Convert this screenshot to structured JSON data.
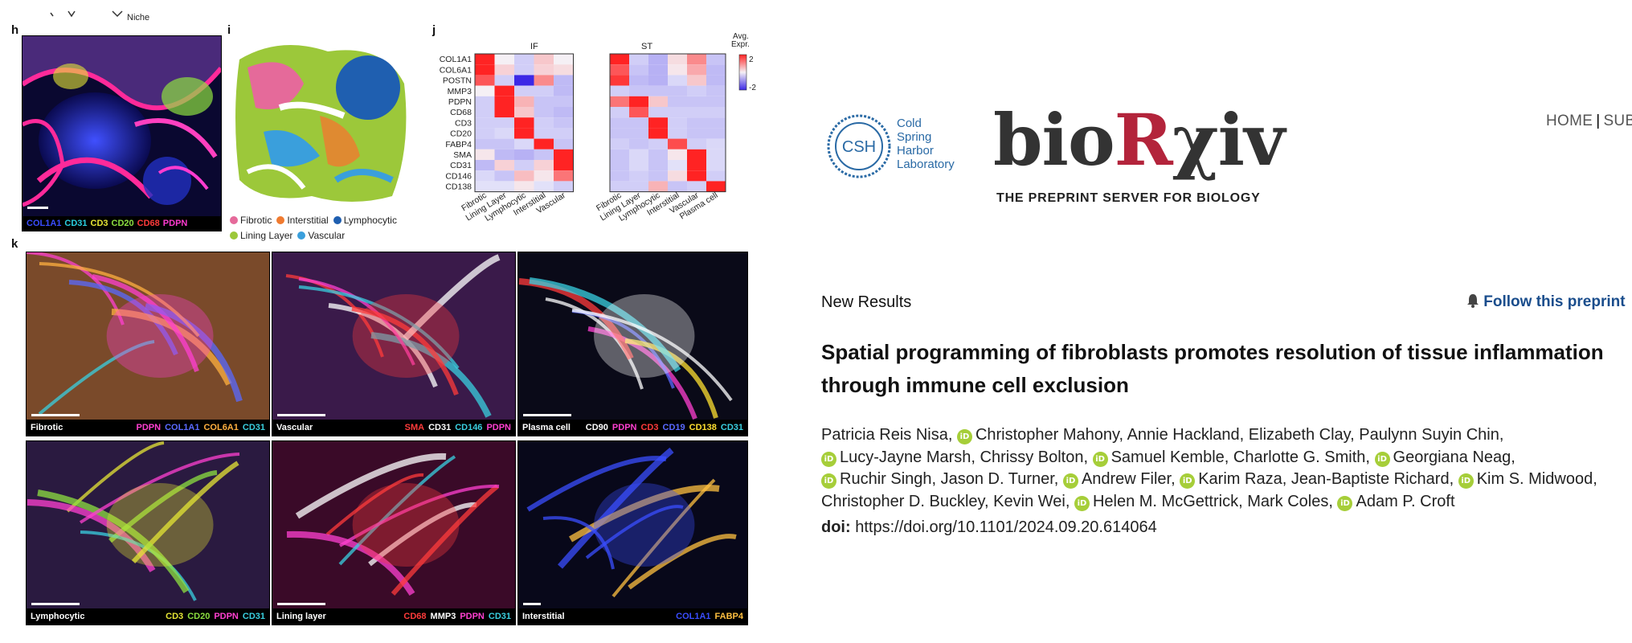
{
  "figure": {
    "panel_labels": {
      "h": "h",
      "i": "i",
      "j": "j",
      "k": "k"
    },
    "top_fragment": "Niche",
    "panel_h": {
      "markers": [
        {
          "text": "COL1A1",
          "color": "#3a4dff"
        },
        {
          "text": "CD31",
          "color": "#2ad0e0"
        },
        {
          "text": "CD3",
          "color": "#e6e635"
        },
        {
          "text": "CD20",
          "color": "#8de040"
        },
        {
          "text": "CD68",
          "color": "#ff3b3b"
        },
        {
          "text": "PDPN",
          "color": "#ff3bd0"
        }
      ]
    },
    "panel_i": {
      "legend": [
        {
          "label": "Fibrotic",
          "color": "#e56a9a"
        },
        {
          "label": "Interstitial",
          "color": "#f07b30"
        },
        {
          "label": "Lymphocytic",
          "color": "#1f5fb0"
        },
        {
          "label": "Lining Layer",
          "color": "#9cc83a"
        },
        {
          "label": "Vascular",
          "color": "#3a9fdc"
        }
      ]
    },
    "panel_j": {
      "left_title": "IF",
      "right_title": "ST",
      "colorbar_title_1": "Avg.",
      "colorbar_title_2": "Expr.",
      "colorbar_max": "2",
      "colorbar_min": "-2",
      "rows": [
        "COL1A1",
        "COL6A1",
        "POSTN",
        "MMP3",
        "PDPN",
        "CD68",
        "CD3",
        "CD20",
        "FABP4",
        "SMA",
        "CD31",
        "CD146",
        "CD138"
      ],
      "if_cols": [
        "Fibrotic",
        "Lining Layer",
        "Lymphocytic",
        "Interstitial",
        "Vascular"
      ],
      "st_cols": [
        "Fibrotic",
        "Lining Layer",
        "Lymphocytic",
        "Interstitial",
        "Vascular",
        "Plasma cell"
      ],
      "if_values": [
        [
          2,
          0,
          -0.3,
          0.4,
          0
        ],
        [
          2,
          0.3,
          -0.3,
          0.3,
          0.2
        ],
        [
          1.5,
          -0.3,
          -2,
          1,
          -0.5
        ],
        [
          0,
          2,
          -0.3,
          -0.3,
          -0.5
        ],
        [
          -0.3,
          2,
          0.6,
          -0.4,
          -0.4
        ],
        [
          -0.3,
          2,
          0.4,
          -0.4,
          -0.5
        ],
        [
          -0.3,
          -0.3,
          2,
          -0.3,
          -0.4
        ],
        [
          -0.3,
          -0.2,
          2,
          -0.3,
          -0.3
        ],
        [
          -0.4,
          -0.4,
          -0.2,
          2,
          -0.4
        ],
        [
          0.1,
          -0.5,
          -0.6,
          -0.4,
          2
        ],
        [
          -0.5,
          0.3,
          -0.3,
          0.3,
          2
        ],
        [
          -0.2,
          -0.4,
          0.5,
          0.1,
          1.2
        ],
        [
          -0.1,
          -0.1,
          0.1,
          -0.1,
          -0.3
        ]
      ],
      "st_values": [
        [
          2,
          -0.3,
          -0.6,
          0.2,
          1,
          -0.4
        ],
        [
          1.5,
          -0.4,
          -0.6,
          0.1,
          0.7,
          -0.5
        ],
        [
          1.8,
          -0.5,
          -0.6,
          -0.2,
          0.4,
          -0.5
        ],
        [
          -0.3,
          -0.4,
          -0.4,
          -0.4,
          -0.3,
          -0.4
        ],
        [
          1.2,
          2,
          0.4,
          -0.4,
          -0.4,
          -0.4
        ],
        [
          -0.3,
          1.5,
          -0.3,
          -0.3,
          -0.3,
          -0.3
        ],
        [
          -0.4,
          -0.4,
          2,
          -0.3,
          -0.4,
          -0.4
        ],
        [
          -0.4,
          -0.4,
          2,
          -0.3,
          -0.4,
          -0.4
        ],
        [
          -0.3,
          -0.4,
          -0.3,
          1.6,
          -0.3,
          -0.2
        ],
        [
          -0.4,
          -0.2,
          -0.4,
          0.1,
          2,
          -0.2
        ],
        [
          -0.4,
          -0.2,
          -0.4,
          -0.1,
          2,
          -0.2
        ],
        [
          -0.4,
          -0.3,
          -0.4,
          0.2,
          2,
          -0.3
        ],
        [
          -0.3,
          -0.3,
          0.6,
          -0.4,
          -0.3,
          2
        ]
      ]
    },
    "panel_k": {
      "tiles": [
        {
          "title": "Fibrotic",
          "bg": "#7a4a2a",
          "markers": [
            {
              "text": "PDPN",
              "color": "#ff40d0"
            },
            {
              "text": "COL1A1",
              "color": "#5a6aff"
            },
            {
              "text": "COL6A1",
              "color": "#ffb040"
            },
            {
              "text": "CD31",
              "color": "#3ad0e0"
            }
          ]
        },
        {
          "title": "Vascular",
          "bg": "#3a1a4a",
          "markers": [
            {
              "text": "SMA",
              "color": "#ff3b3b"
            },
            {
              "text": "CD31",
              "color": "#ffffff"
            },
            {
              "text": "CD146",
              "color": "#3ad0e0"
            },
            {
              "text": "PDPN",
              "color": "#ff40d0"
            }
          ]
        },
        {
          "title": "Plasma cell",
          "bg": "#0a0a18",
          "markers": [
            {
              "text": "CD90",
              "color": "#ffffff"
            },
            {
              "text": "PDPN",
              "color": "#ff40d0"
            },
            {
              "text": "CD3",
              "color": "#ff3b3b"
            },
            {
              "text": "CD19",
              "color": "#5a6aff"
            },
            {
              "text": "CD138",
              "color": "#ffe030"
            },
            {
              "text": "CD31",
              "color": "#3ad0e0"
            }
          ]
        },
        {
          "title": "Lymphocytic",
          "bg": "#2a1a40",
          "markers": [
            {
              "text": "CD3",
              "color": "#e6e635"
            },
            {
              "text": "CD20",
              "color": "#8de040"
            },
            {
              "text": "PDPN",
              "color": "#ff40d0"
            },
            {
              "text": "CD31",
              "color": "#3ad0e0"
            }
          ]
        },
        {
          "title": "Lining layer",
          "bg": "#3a0a28",
          "markers": [
            {
              "text": "CD68",
              "color": "#ff3b3b"
            },
            {
              "text": "MMP3",
              "color": "#ffffff"
            },
            {
              "text": "PDPN",
              "color": "#ff40d0"
            },
            {
              "text": "CD31",
              "color": "#3ad0e0"
            }
          ]
        },
        {
          "title": "Interstitial",
          "bg": "#08081a",
          "markers": [
            {
              "text": "COL1A1",
              "color": "#3a4dff"
            },
            {
              "text": "FABP4",
              "color": "#ffc040"
            }
          ]
        }
      ]
    }
  },
  "header": {
    "csh_logo_abbr": "CSH",
    "csh_lines": [
      "Cold",
      "Spring",
      "Harbor",
      "Laboratory"
    ],
    "logo_bio": "bio",
    "logo_r": "R",
    "logo_xiv": "χiv",
    "tagline": "THE PREPRINT SERVER FOR BIOLOGY",
    "nav_home": "HOME",
    "nav_sep": "|",
    "nav_sub": "SUB"
  },
  "article": {
    "category": "New Results",
    "follow_label": "Follow this preprint",
    "title_line1": "Spatial programming of fibroblasts promotes resolution of tissue inflammation",
    "title_line2": "through immune cell exclusion",
    "authors": [
      [
        {
          "name": "Patricia Reis Nisa,",
          "orcid": false
        },
        {
          "name": "Christopher Mahony,",
          "orcid": true
        },
        {
          "name": "Annie Hackland,",
          "orcid": false
        },
        {
          "name": "Elizabeth Clay,",
          "orcid": false
        },
        {
          "name": "Paulynn Suyin Chin,",
          "orcid": false
        }
      ],
      [
        {
          "name": "Lucy-Jayne Marsh,",
          "orcid": true
        },
        {
          "name": "Chrissy Bolton,",
          "orcid": false
        },
        {
          "name": "Samuel Kemble,",
          "orcid": true
        },
        {
          "name": "Charlotte G. Smith,",
          "orcid": false
        },
        {
          "name": "Georgiana Neag,",
          "orcid": true
        }
      ],
      [
        {
          "name": "Ruchir Singh,",
          "orcid": true
        },
        {
          "name": "Jason D. Turner,",
          "orcid": false
        },
        {
          "name": "Andrew Filer,",
          "orcid": true
        },
        {
          "name": "Karim Raza,",
          "orcid": true
        },
        {
          "name": "Jean-Baptiste Richard,",
          "orcid": false
        },
        {
          "name": "Kim S. Midwood,",
          "orcid": true
        }
      ],
      [
        {
          "name": "Christopher D. Buckley,",
          "orcid": false
        },
        {
          "name": "Kevin Wei,",
          "orcid": false
        },
        {
          "name": "Helen M. McGettrick,",
          "orcid": true
        },
        {
          "name": "Mark Coles,",
          "orcid": false
        },
        {
          "name": "Adam P. Croft",
          "orcid": true
        }
      ]
    ],
    "orcid_icon_text": "iD",
    "doi_label": "doi:",
    "doi_value": "https://doi.org/10.1101/2024.09.20.614064"
  },
  "colors": {
    "brand_red": "#b3243b",
    "link_blue": "#1a4d8c",
    "orcid_green": "#a6ce39",
    "csh_blue": "#2a6aa5"
  }
}
